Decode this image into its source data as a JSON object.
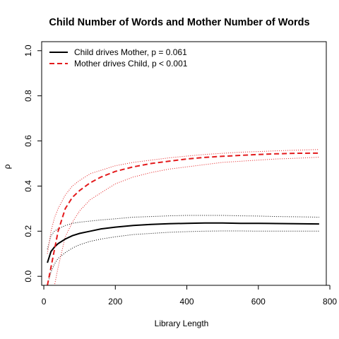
{
  "chart_data": {
    "type": "line",
    "title": "Child Number of Words and Mother Number of Words",
    "xlabel": "Library Length",
    "ylabel": "ρ",
    "xlim": [
      -6,
      790
    ],
    "ylim": [
      -0.04,
      1.04
    ],
    "xticks": [
      0,
      200,
      400,
      600,
      800
    ],
    "yticks": [
      0.0,
      0.2,
      0.4,
      0.6,
      0.8,
      1.0
    ],
    "xtick_labels": [
      "0",
      "200",
      "400",
      "600",
      "800"
    ],
    "ytick_labels": [
      "0.0",
      "0.2",
      "0.4",
      "0.6",
      "0.8",
      "1.0"
    ],
    "legend_position": "top-left",
    "grid": false,
    "x": [
      10,
      20,
      30,
      40,
      60,
      80,
      100,
      130,
      160,
      200,
      250,
      300,
      350,
      400,
      450,
      500,
      550,
      600,
      650,
      700,
      770
    ],
    "series": [
      {
        "name": "Child drives Mother, p = 0.061",
        "color": "#000000",
        "style": "solid",
        "values": [
          0.06,
          0.11,
          0.13,
          0.145,
          0.165,
          0.18,
          0.19,
          0.2,
          0.21,
          0.218,
          0.225,
          0.23,
          0.233,
          0.235,
          0.236,
          0.236,
          0.235,
          0.235,
          0.234,
          0.233,
          0.232
        ]
      },
      {
        "name": "Mother drives Child, p < 0.001",
        "color": "#e31a1c",
        "style": "dashed",
        "values": [
          -0.04,
          0.04,
          0.12,
          0.2,
          0.3,
          0.35,
          0.38,
          0.415,
          0.44,
          0.465,
          0.485,
          0.5,
          0.51,
          0.52,
          0.527,
          0.532,
          0.536,
          0.54,
          0.543,
          0.545,
          0.546
        ]
      }
    ],
    "confidence_bands": [
      {
        "series": "Child drives Mother, p = 0.061",
        "color": "#000000",
        "upper": [
          0.12,
          0.18,
          0.2,
          0.21,
          0.225,
          0.235,
          0.24,
          0.245,
          0.25,
          0.255,
          0.262,
          0.265,
          0.268,
          0.27,
          0.27,
          0.27,
          0.268,
          0.267,
          0.265,
          0.264,
          0.262
        ],
        "lower": [
          -0.04,
          0.02,
          0.055,
          0.08,
          0.105,
          0.125,
          0.14,
          0.155,
          0.165,
          0.175,
          0.185,
          0.19,
          0.195,
          0.198,
          0.2,
          0.201,
          0.201,
          0.2,
          0.2,
          0.2,
          0.2
        ]
      },
      {
        "series": "Mother drives Child, p < 0.001",
        "color": "#e31a1c",
        "upper": [
          0.1,
          0.2,
          0.26,
          0.3,
          0.36,
          0.4,
          0.425,
          0.455,
          0.47,
          0.49,
          0.505,
          0.515,
          0.525,
          0.533,
          0.54,
          0.545,
          0.55,
          0.553,
          0.556,
          0.559,
          0.562
        ],
        "lower": [
          -0.04,
          -0.04,
          -0.04,
          0.04,
          0.175,
          0.24,
          0.29,
          0.34,
          0.37,
          0.41,
          0.44,
          0.46,
          0.475,
          0.485,
          0.495,
          0.505,
          0.51,
          0.515,
          0.52,
          0.523,
          0.528
        ]
      }
    ]
  }
}
